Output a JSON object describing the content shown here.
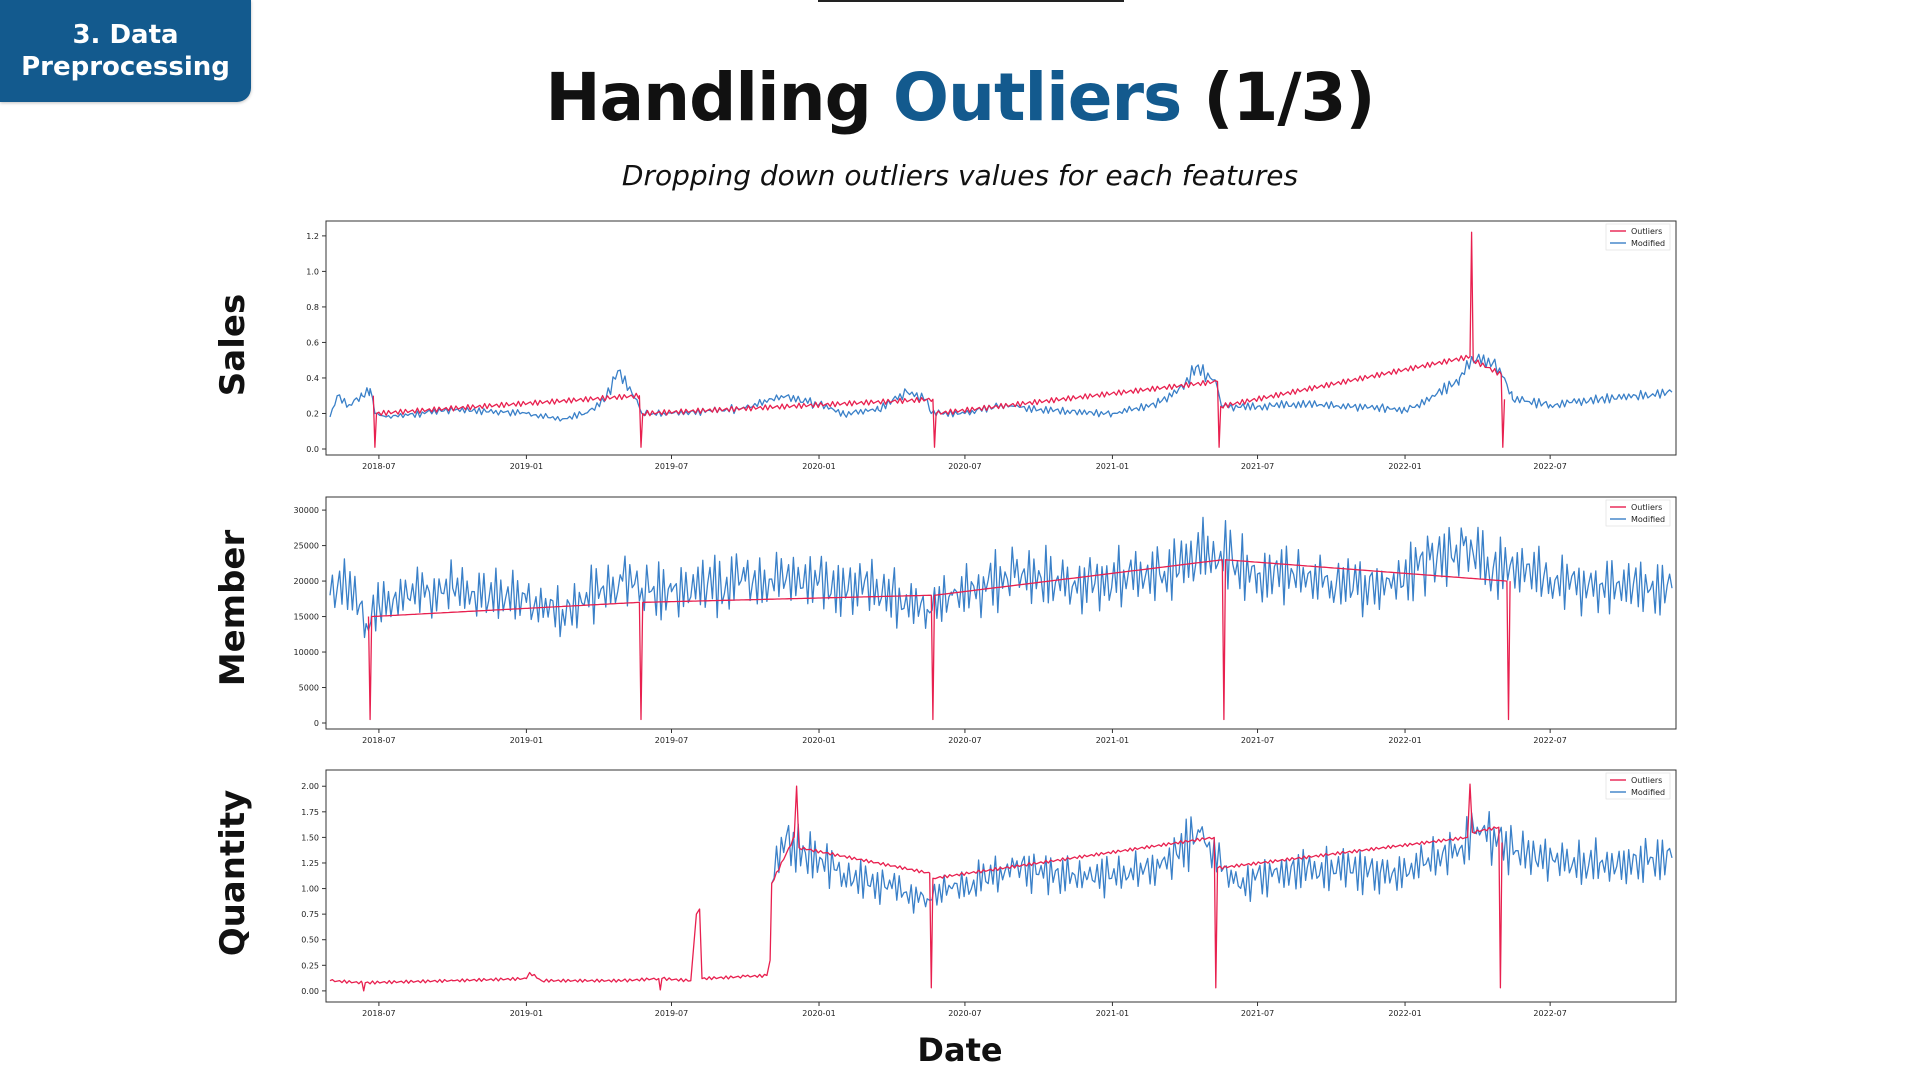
{
  "badge": {
    "line1": "3. Data",
    "line2": "Preprocessing"
  },
  "title": {
    "prefix": "Handling ",
    "highlight": "Outliers",
    "suffix": " (1/3)"
  },
  "subtitle": "Dropping down outliers values for each features",
  "xlabel": "Date",
  "colors": {
    "brand": "#135a8e",
    "modified": "#3a80c8",
    "outliers": "#e8204f"
  },
  "chart_data": [
    {
      "type": "line",
      "row_label": "Sales",
      "x_range": [
        "2018-05-01",
        "2022-11-30"
      ],
      "ylim": [
        0,
        1.25
      ],
      "yticks": [
        "0.0",
        "0.2",
        "0.4",
        "0.6",
        "0.8",
        "1.0",
        "1.2"
      ],
      "xticks": [
        "2018-07",
        "2019-01",
        "2019-07",
        "2020-01",
        "2020-07",
        "2021-01",
        "2021-07",
        "2022-01",
        "2022-07"
      ],
      "legend": {
        "position": "top-right",
        "entries": [
          "Outliers",
          "Modified"
        ]
      },
      "series": [
        {
          "name": "Modified",
          "color": "#3a80c8",
          "points": [
            [
              "2018-05-01",
              0.18
            ],
            [
              "2018-05-10",
              0.3
            ],
            [
              "2018-05-25",
              0.25
            ],
            [
              "2018-06-10",
              0.3
            ],
            [
              "2018-06-20",
              0.34
            ],
            [
              "2018-06-26",
              0.2
            ],
            [
              "2018-07-10",
              0.18
            ],
            [
              "2018-10-01",
              0.22
            ],
            [
              "2019-01-01",
              0.2
            ],
            [
              "2019-02-15",
              0.17
            ],
            [
              "2019-03-15",
              0.2
            ],
            [
              "2019-04-10",
              0.28
            ],
            [
              "2019-04-25",
              0.44
            ],
            [
              "2019-05-10",
              0.35
            ],
            [
              "2019-05-20",
              0.26
            ],
            [
              "2019-05-25",
              0.2
            ],
            [
              "2019-07-01",
              0.2
            ],
            [
              "2019-10-01",
              0.23
            ],
            [
              "2019-11-15",
              0.3
            ],
            [
              "2020-01-01",
              0.25
            ],
            [
              "2020-02-01",
              0.2
            ],
            [
              "2020-03-15",
              0.22
            ],
            [
              "2020-04-20",
              0.32
            ],
            [
              "2020-05-15",
              0.28
            ],
            [
              "2020-05-20",
              0.2
            ],
            [
              "2020-07-01",
              0.2
            ],
            [
              "2020-08-15",
              0.25
            ],
            [
              "2020-09-01",
              0.24
            ],
            [
              "2020-10-01",
              0.22
            ],
            [
              "2021-01-01",
              0.2
            ],
            [
              "2021-03-01",
              0.26
            ],
            [
              "2021-04-01",
              0.36
            ],
            [
              "2021-04-15",
              0.46
            ],
            [
              "2021-05-10",
              0.38
            ],
            [
              "2021-05-17",
              0.24
            ],
            [
              "2021-07-01",
              0.24
            ],
            [
              "2021-09-01",
              0.25
            ],
            [
              "2021-12-01",
              0.23
            ],
            [
              "2022-01-01",
              0.22
            ],
            [
              "2022-02-01",
              0.28
            ],
            [
              "2022-03-10",
              0.4
            ],
            [
              "2022-03-25",
              0.52
            ],
            [
              "2022-04-20",
              0.48
            ],
            [
              "2022-05-05",
              0.4
            ],
            [
              "2022-05-15",
              0.28
            ],
            [
              "2022-07-01",
              0.25
            ],
            [
              "2022-09-01",
              0.28
            ],
            [
              "2022-11-30",
              0.32
            ]
          ]
        },
        {
          "name": "Outliers",
          "color": "#e8204f",
          "points": [
            [
              "2018-06-24",
              0.3
            ],
            [
              "2018-06-26",
              0.01
            ],
            [
              "2018-06-28",
              0.2
            ],
            [
              "2019-05-22",
              0.3
            ],
            [
              "2019-05-24",
              0.01
            ],
            [
              "2019-05-26",
              0.2
            ],
            [
              "2020-05-22",
              0.28
            ],
            [
              "2020-05-24",
              0.01
            ],
            [
              "2020-05-26",
              0.2
            ],
            [
              "2021-05-12",
              0.38
            ],
            [
              "2021-05-14",
              0.01
            ],
            [
              "2021-05-16",
              0.24
            ],
            [
              "2022-03-23",
              0.52
            ],
            [
              "2022-03-25",
              1.22
            ],
            [
              "2022-03-27",
              0.5
            ],
            [
              "2022-05-01",
              0.42
            ],
            [
              "2022-05-03",
              0.01
            ],
            [
              "2022-05-05",
              0.28
            ]
          ]
        }
      ]
    },
    {
      "type": "line",
      "row_label": "Member",
      "x_range": [
        "2018-05-01",
        "2022-11-30"
      ],
      "ylim": [
        0,
        31000
      ],
      "yticks": [
        "0",
        "5000",
        "10000",
        "15000",
        "20000",
        "25000",
        "30000"
      ],
      "xticks": [
        "2018-07",
        "2019-01",
        "2019-07",
        "2020-01",
        "2020-07",
        "2021-01",
        "2021-07",
        "2022-01",
        "2022-07"
      ],
      "legend": {
        "position": "top-right",
        "entries": [
          "Outliers",
          "Modified"
        ]
      },
      "series": [
        {
          "name": "Modified",
          "color": "#3a80c8",
          "points": [
            [
              "2018-05-01",
              18000
            ],
            [
              "2018-05-20",
              21000
            ],
            [
              "2018-06-15",
              14000
            ],
            [
              "2018-07-01",
              17000
            ],
            [
              "2018-10-01",
              19000
            ],
            [
              "2019-01-01",
              17000
            ],
            [
              "2019-02-15",
              16000
            ],
            [
              "2019-05-01",
              20000
            ],
            [
              "2019-05-25",
              19000
            ],
            [
              "2019-07-01",
              18500
            ],
            [
              "2019-10-01",
              20000
            ],
            [
              "2020-01-01",
              20000
            ],
            [
              "2020-04-01",
              18000
            ],
            [
              "2020-05-15",
              16000
            ],
            [
              "2020-06-15",
              18000
            ],
            [
              "2020-09-01",
              20500
            ],
            [
              "2020-12-01",
              19500
            ],
            [
              "2021-03-01",
              21000
            ],
            [
              "2021-05-01",
              24000
            ],
            [
              "2021-07-01",
              21000
            ],
            [
              "2021-10-01",
              20000
            ],
            [
              "2021-12-15",
              19000
            ],
            [
              "2022-02-01",
              23000
            ],
            [
              "2022-03-15",
              25000
            ],
            [
              "2022-04-15",
              22000
            ],
            [
              "2022-07-01",
              20500
            ],
            [
              "2022-09-01",
              19500
            ],
            [
              "2022-11-30",
              19000
            ]
          ]
        },
        {
          "name": "Outliers",
          "color": "#e8204f",
          "points": [
            [
              "2018-06-18",
              15000
            ],
            [
              "2018-06-20",
              500
            ],
            [
              "2018-06-22",
              15000
            ],
            [
              "2019-05-22",
              17000
            ],
            [
              "2019-05-24",
              500
            ],
            [
              "2019-05-26",
              17000
            ],
            [
              "2020-05-20",
              18000
            ],
            [
              "2020-05-22",
              500
            ],
            [
              "2020-05-24",
              18000
            ],
            [
              "2021-05-18",
              23000
            ],
            [
              "2021-05-20",
              500
            ],
            [
              "2021-05-22",
              23000
            ],
            [
              "2022-05-08",
              20000
            ],
            [
              "2022-05-10",
              500
            ],
            [
              "2022-05-12",
              20000
            ]
          ]
        }
      ]
    },
    {
      "type": "line",
      "row_label": "Quantity",
      "x_range": [
        "2018-05-01",
        "2022-11-30"
      ],
      "ylim": [
        -0.05,
        2.1
      ],
      "yticks": [
        "0.00",
        "0.25",
        "0.50",
        "0.75",
        "1.00",
        "1.25",
        "1.50",
        "1.75",
        "2.00"
      ],
      "xticks": [
        "2018-07",
        "2019-01",
        "2019-07",
        "2020-01",
        "2020-07",
        "2021-01",
        "2021-07",
        "2022-01",
        "2022-07"
      ],
      "legend": {
        "position": "top-right",
        "entries": [
          "Outliers",
          "Modified"
        ]
      },
      "series": [
        {
          "name": "Modified",
          "color": "#3a80c8",
          "points": [
            [
              "2019-11-03",
              1.05
            ],
            [
              "2019-11-15",
              1.5
            ],
            [
              "2019-12-15",
              1.35
            ],
            [
              "2020-02-01",
              1.15
            ],
            [
              "2020-04-01",
              1.0
            ],
            [
              "2020-05-15",
              0.9
            ],
            [
              "2020-06-15",
              1.0
            ],
            [
              "2020-09-01",
              1.2
            ],
            [
              "2020-12-01",
              1.1
            ],
            [
              "2021-03-01",
              1.2
            ],
            [
              "2021-04-20",
              1.55
            ],
            [
              "2021-06-01",
              1.05
            ],
            [
              "2021-09-01",
              1.2
            ],
            [
              "2021-12-01",
              1.15
            ],
            [
              "2022-03-01",
              1.3
            ],
            [
              "2022-04-01",
              1.6
            ],
            [
              "2022-06-01",
              1.3
            ],
            [
              "2022-09-01",
              1.25
            ],
            [
              "2022-11-30",
              1.3
            ]
          ]
        },
        {
          "name": "Outliers",
          "color": "#e8204f",
          "points": [
            [
              "2018-05-01",
              0.1
            ],
            [
              "2018-06-10",
              0.08
            ],
            [
              "2018-06-12",
              0.0
            ],
            [
              "2018-06-14",
              0.08
            ],
            [
              "2018-10-01",
              0.1
            ],
            [
              "2019-01-01",
              0.12
            ],
            [
              "2019-01-05",
              0.18
            ],
            [
              "2019-01-20",
              0.1
            ],
            [
              "2019-05-01",
              0.1
            ],
            [
              "2019-06-15",
              0.12
            ],
            [
              "2019-06-17",
              0.01
            ],
            [
              "2019-06-19",
              0.12
            ],
            [
              "2019-07-25",
              0.1
            ],
            [
              "2019-08-01",
              0.75
            ],
            [
              "2019-08-05",
              0.8
            ],
            [
              "2019-08-08",
              0.12
            ],
            [
              "2019-10-01",
              0.14
            ],
            [
              "2019-10-28",
              0.15
            ],
            [
              "2019-11-01",
              0.3
            ],
            [
              "2019-11-03",
              1.05
            ],
            [
              "2019-12-01",
              1.5
            ],
            [
              "2019-12-04",
              2.0
            ],
            [
              "2019-12-07",
              1.4
            ],
            [
              "2020-05-18",
              1.15
            ],
            [
              "2020-05-20",
              0.03
            ],
            [
              "2020-05-22",
              1.1
            ],
            [
              "2021-05-08",
              1.5
            ],
            [
              "2021-05-10",
              0.03
            ],
            [
              "2021-05-12",
              1.2
            ],
            [
              "2022-03-20",
              1.5
            ],
            [
              "2022-03-23",
              2.02
            ],
            [
              "2022-03-26",
              1.55
            ],
            [
              "2022-04-28",
              1.6
            ],
            [
              "2022-04-30",
              0.03
            ],
            [
              "2022-05-02",
              1.45
            ]
          ]
        }
      ]
    }
  ]
}
